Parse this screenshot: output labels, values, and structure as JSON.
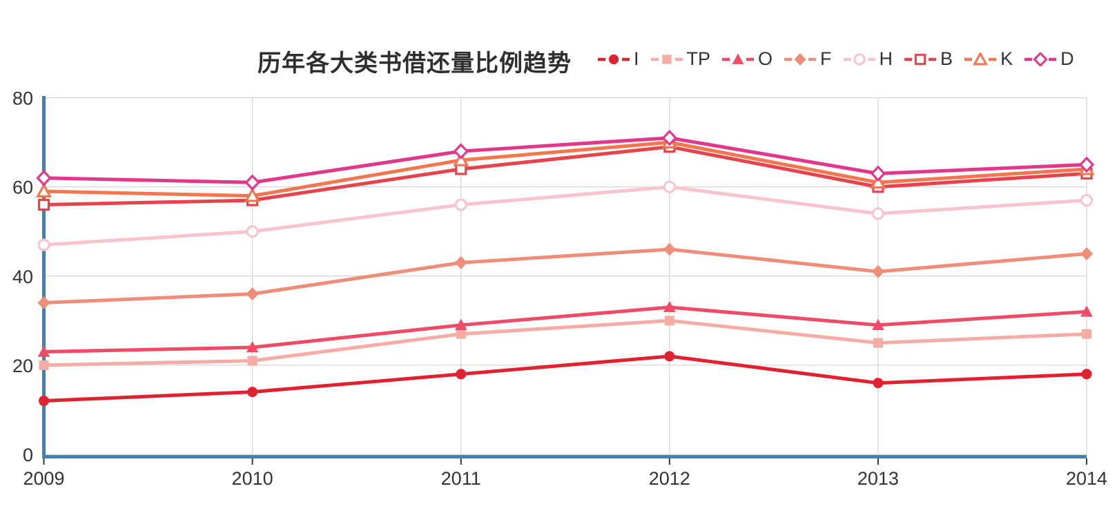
{
  "style": {
    "axis_color": "#4180b4",
    "grid_color": "#cccccc",
    "text_color": "#333333",
    "tick_color": "#333333",
    "title_color": "#2e2e2e",
    "background": "#ffffff"
  },
  "chart_data": {
    "type": "line",
    "title": "历年各大类书借还量比例趋势",
    "x": [
      "2009",
      "2010",
      "2011",
      "2012",
      "2013",
      "2014"
    ],
    "ylim": [
      0,
      80
    ],
    "yticks": [
      0,
      20,
      40,
      60,
      80
    ],
    "grid": true,
    "legend_position": "top-right",
    "legend_entries": [
      "I",
      "TP",
      "O",
      "F",
      "H",
      "B",
      "K",
      "D"
    ],
    "series": [
      {
        "name": "I",
        "color": "#e02230",
        "marker": "circle",
        "filled": true,
        "values": [
          12,
          14,
          18,
          22,
          16,
          18
        ]
      },
      {
        "name": "TP",
        "color": "#f6aba4",
        "marker": "square",
        "filled": true,
        "values": [
          20,
          21,
          27,
          30,
          25,
          27
        ]
      },
      {
        "name": "O",
        "color": "#ef4b66",
        "marker": "triangle",
        "filled": true,
        "values": [
          23,
          24,
          29,
          33,
          29,
          32
        ]
      },
      {
        "name": "F",
        "color": "#f08d79",
        "marker": "diamond",
        "filled": true,
        "values": [
          34,
          36,
          43,
          46,
          41,
          45
        ]
      },
      {
        "name": "H",
        "color": "#f8c4cf",
        "marker": "circle",
        "filled": false,
        "values": [
          47,
          50,
          56,
          60,
          54,
          57
        ]
      },
      {
        "name": "B",
        "color": "#e6434d",
        "marker": "square",
        "filled": false,
        "values": [
          56,
          57,
          64,
          69,
          60,
          63
        ]
      },
      {
        "name": "K",
        "color": "#f3764f",
        "marker": "triangle",
        "filled": false,
        "values": [
          59,
          58,
          66,
          70,
          61,
          64
        ]
      },
      {
        "name": "D",
        "color": "#e1388b",
        "marker": "diamond",
        "filled": false,
        "values": [
          62,
          61,
          68,
          71,
          63,
          65
        ]
      }
    ]
  }
}
